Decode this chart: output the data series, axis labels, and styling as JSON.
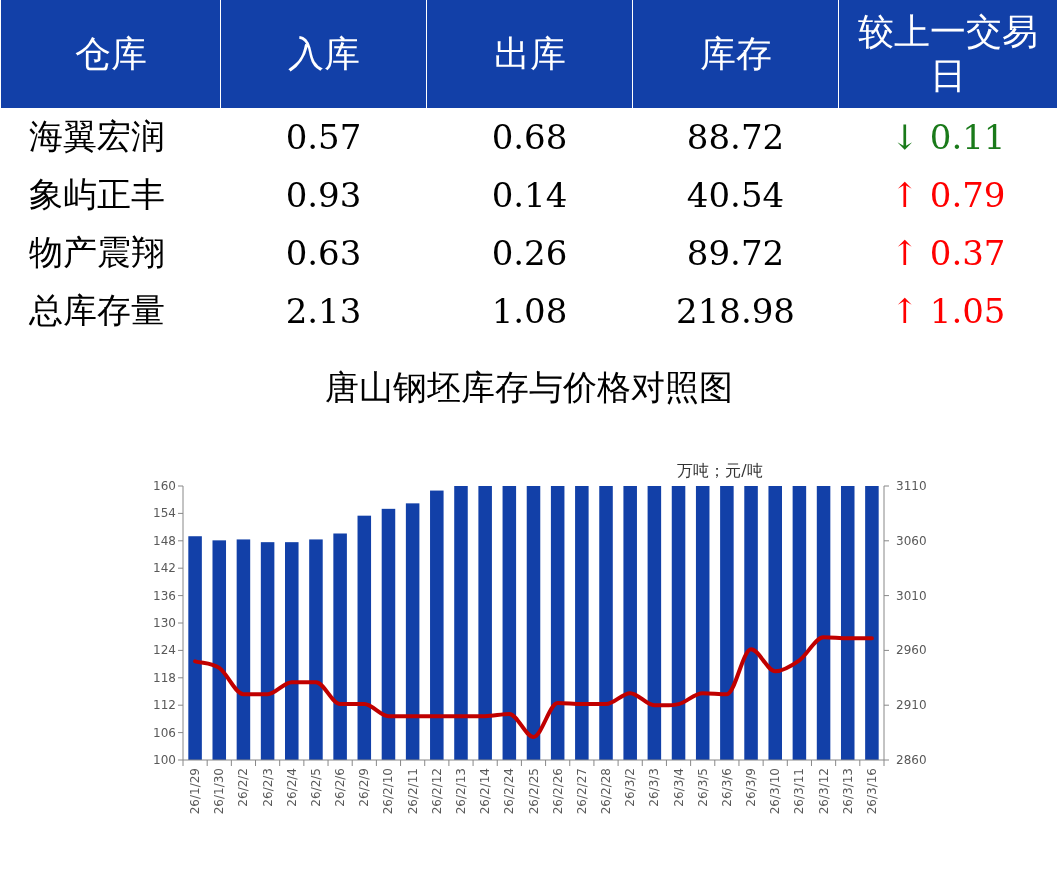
{
  "chart_data": [
    {
      "type": "other",
      "categories": [
        "仓库",
        "入库",
        "出库",
        "库存",
        "较上一交易日"
      ],
      "y_categories": [
        "海翼宏润",
        "象屿正丰",
        "物产震翔",
        "总库存量"
      ],
      "cell_labels": [
        [
          "0.57",
          "0.68",
          "88.72",
          "↓ 0.11"
        ],
        [
          "0.93",
          "0.14",
          "40.54",
          "↑ 0.79"
        ],
        [
          "0.63",
          "0.26",
          "89.72",
          "↑ 0.37"
        ],
        [
          "2.13",
          "1.08",
          "218.98",
          "↑ 1.05"
        ]
      ],
      "colors": [
        [
          "#000000",
          "#000000",
          "#000000",
          "#1a7a1a"
        ],
        [
          "#000000",
          "#000000",
          "#000000",
          "#ff0000"
        ],
        [
          "#000000",
          "#000000",
          "#000000",
          "#ff0000"
        ],
        [
          "#000000",
          "#000000",
          "#000000",
          "#ff0000"
        ]
      ],
      "color": "#1240a8"
    },
    {
      "type": "bar",
      "title": "唐山钢坯库存与价格对照图",
      "annotations": [
        "万吨；元/吨"
      ],
      "categories": [
        "26/1/29",
        "26/1/30",
        "26/2/2",
        "26/2/3",
        "26/2/4",
        "26/2/5",
        "26/2/6",
        "26/2/9",
        "26/2/10",
        "26/2/11",
        "26/2/12",
        "26/2/13",
        "26/2/14",
        "26/2/24",
        "26/2/25",
        "26/2/26",
        "26/2/27",
        "26/2/28",
        "26/3/2",
        "26/3/3",
        "26/3/4",
        "26/3/5",
        "26/3/6",
        "26/3/9",
        "26/3/10",
        "26/3/11",
        "26/3/12",
        "26/3/13",
        "26/3/16"
      ],
      "series": [
        {
          "type": "bar",
          "color": "#1240a8",
          "values": [
            149,
            148.1,
            148.3,
            147.7,
            147.7,
            148.3,
            149.6,
            153.5,
            155,
            156.2,
            159,
            160,
            160,
            160,
            160,
            160,
            160,
            160,
            160,
            160,
            160,
            160,
            160,
            160,
            160,
            160,
            160,
            160,
            160
          ]
        },
        {
          "type": "line",
          "axis": "y2",
          "color": "#c00000",
          "values": [
            2950,
            2944,
            2920,
            2920,
            2931,
            2931,
            2911,
            2911,
            2900,
            2900,
            2900,
            2900,
            2900,
            2902,
            2881,
            2912,
            2911,
            2911,
            2921,
            2910,
            2911,
            2921,
            2920,
            2961,
            2941,
            2951,
            2972,
            2971,
            2971
          ]
        }
      ],
      "ylim": [
        100,
        160
      ],
      "yticks": [
        100,
        106,
        112,
        118,
        124,
        130,
        136,
        142,
        148,
        154,
        160
      ],
      "y2lim": [
        2860,
        3110
      ],
      "y2ticks": [
        2860,
        2910,
        2960,
        3010,
        3060,
        3110
      ],
      "grid": false,
      "marker": "none",
      "line_style": "solid"
    }
  ]
}
